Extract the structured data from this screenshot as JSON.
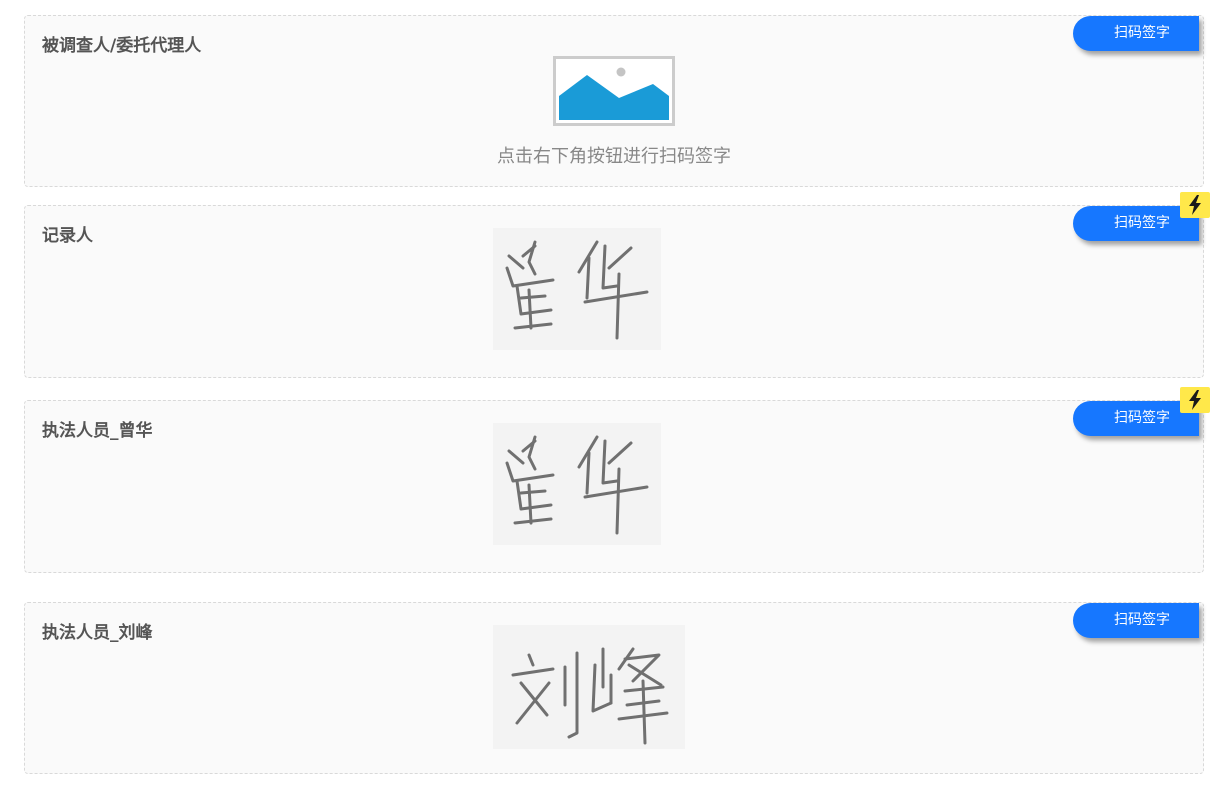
{
  "colors": {
    "button_bg": "#1677ff",
    "badge_bg": "#ffe84a",
    "label_text": "#555555",
    "placeholder_text": "#888888"
  },
  "sections": [
    {
      "label": "被调查人/委托代理人",
      "button_label": "扫码签字",
      "placeholder_text": "点击右下角按钮进行扫码签字",
      "has_badge": false,
      "signature": "placeholder-image-icon"
    },
    {
      "label": "记录人",
      "button_label": "扫码签字",
      "has_badge": true,
      "badge_icon": "lightning-icon",
      "signature": "handwritten-signature"
    },
    {
      "label": "执法人员_曾华",
      "button_label": "扫码签字",
      "has_badge": true,
      "badge_icon": "lightning-icon",
      "signature": "handwritten-signature"
    },
    {
      "label": "执法人员_刘峰",
      "button_label": "扫码签字",
      "has_badge": false,
      "signature": "handwritten-signature"
    }
  ]
}
